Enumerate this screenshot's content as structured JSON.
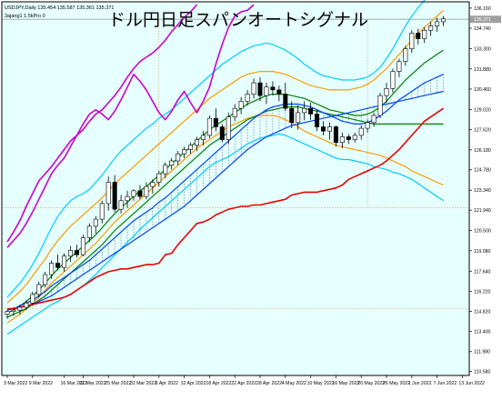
{
  "header": {
    "title": "ドル円日足スパンオートシグナル",
    "symbol_line": "USDJPY,Daily  135.454 135.587 135.361 135.371",
    "indicator_line": "3ajang1 1.5kPro 0"
  },
  "colors": {
    "background": "#e6ffff",
    "frame": "#000000",
    "guide": "#e0a860",
    "bull_candle": "#ffffff",
    "bear_candle": "#000000",
    "price_line_bg": "#a0a0a0"
  },
  "chart_data": {
    "type": "line",
    "ylim": [
      110.3,
      136.6
    ],
    "y_ticks": [
      "136.160",
      "134.740",
      "133.300",
      "131.880",
      "130.460",
      "129.020",
      "127.620",
      "126.180",
      "124.780",
      "123.340",
      "121.940",
      "120.500",
      "119.080",
      "117.640",
      "116.220",
      "114.820",
      "113.400",
      "111.980",
      "110.580"
    ],
    "x_labels": [
      "3 Mar 2022",
      "9 Mar 2022",
      "16 Mar 2022",
      "21 Mar 2022",
      "25 Mar 2022",
      "31 Mar 2022",
      "6 Apr 2022",
      "12 Apr 2022",
      "18 Apr 2022",
      "22 Apr 2022",
      "28 Apr 2022",
      "4 May 2022",
      "10 May 2022",
      "16 May 2022",
      "20 May 2022",
      "26 May 2022",
      "1 Jun 2022",
      "7 Jun 2022",
      "13 Jun 2022"
    ],
    "x_label_index": [
      0,
      4,
      9,
      12,
      16,
      20,
      24,
      28,
      32,
      36,
      40,
      44,
      48,
      52,
      56,
      60,
      64,
      68,
      72
    ],
    "current_price": "135.371",
    "h_levels": [
      135.371,
      122.1,
      115.0
    ],
    "v_lines": [
      24,
      57
    ],
    "candles": [
      [
        114.6,
        114.9,
        114.3,
        114.8
      ],
      [
        114.8,
        115.1,
        114.5,
        114.9
      ],
      [
        114.9,
        115.3,
        114.6,
        115.1
      ],
      [
        115.1,
        115.6,
        114.9,
        115.4
      ],
      [
        115.4,
        116.2,
        115.2,
        116.0
      ],
      [
        116.0,
        116.9,
        115.8,
        116.7
      ],
      [
        116.7,
        117.6,
        116.5,
        117.4
      ],
      [
        117.4,
        118.4,
        117.1,
        118.2
      ],
      [
        118.2,
        118.8,
        117.7,
        117.9
      ],
      [
        117.9,
        118.9,
        117.6,
        118.7
      ],
      [
        118.7,
        119.4,
        118.3,
        119.1
      ],
      [
        119.1,
        119.5,
        118.6,
        118.8
      ],
      [
        118.8,
        120.2,
        118.7,
        120.0
      ],
      [
        120.0,
        121.0,
        119.7,
        120.8
      ],
      [
        120.8,
        121.5,
        120.3,
        121.3
      ],
      [
        121.3,
        122.6,
        121.0,
        122.4
      ],
      [
        122.4,
        124.3,
        121.9,
        123.9
      ],
      [
        123.9,
        124.4,
        121.8,
        122.0
      ],
      [
        122.0,
        123.0,
        121.7,
        122.6
      ],
      [
        122.6,
        123.3,
        122.1,
        122.9
      ],
      [
        122.9,
        123.4,
        122.6,
        123.3
      ],
      [
        123.3,
        123.7,
        122.7,
        122.9
      ],
      [
        122.9,
        123.9,
        122.7,
        123.6
      ],
      [
        123.6,
        124.1,
        123.1,
        123.9
      ],
      [
        123.9,
        124.7,
        123.6,
        124.5
      ],
      [
        124.5,
        125.3,
        124.2,
        125.1
      ],
      [
        125.1,
        125.6,
        124.8,
        125.4
      ],
      [
        125.4,
        126.1,
        125.1,
        125.9
      ],
      [
        125.9,
        126.4,
        125.6,
        126.2
      ],
      [
        126.2,
        126.7,
        125.9,
        126.5
      ],
      [
        126.5,
        127.1,
        126.1,
        126.9
      ],
      [
        126.9,
        127.5,
        126.5,
        127.2
      ],
      [
        127.2,
        128.6,
        127.0,
        128.4
      ],
      [
        128.4,
        129.1,
        127.5,
        127.8
      ],
      [
        127.8,
        128.0,
        126.7,
        126.9
      ],
      [
        126.9,
        128.8,
        126.6,
        128.5
      ],
      [
        128.5,
        129.4,
        128.2,
        129.1
      ],
      [
        129.1,
        129.9,
        128.7,
        129.6
      ],
      [
        129.6,
        130.4,
        129.3,
        130.1
      ],
      [
        130.1,
        131.2,
        129.8,
        130.9
      ],
      [
        130.9,
        131.3,
        129.6,
        130.0
      ],
      [
        130.0,
        130.9,
        129.4,
        130.6
      ],
      [
        130.6,
        131.0,
        130.0,
        130.4
      ],
      [
        130.4,
        130.7,
        129.6,
        130.1
      ],
      [
        130.1,
        130.9,
        128.9,
        129.1
      ],
      [
        129.1,
        129.6,
        127.7,
        128.1
      ],
      [
        128.1,
        129.3,
        127.6,
        128.8
      ],
      [
        128.8,
        129.6,
        128.3,
        129.1
      ],
      [
        129.1,
        129.5,
        128.3,
        128.7
      ],
      [
        128.7,
        129.0,
        127.5,
        127.8
      ],
      [
        127.8,
        128.2,
        127.2,
        127.5
      ],
      [
        127.5,
        128.1,
        126.9,
        127.8
      ],
      [
        127.8,
        127.9,
        126.4,
        126.7
      ],
      [
        126.7,
        127.4,
        126.3,
        127.1
      ],
      [
        127.1,
        127.3,
        126.6,
        126.9
      ],
      [
        126.9,
        127.4,
        126.7,
        127.2
      ],
      [
        127.2,
        127.9,
        126.9,
        127.7
      ],
      [
        127.7,
        128.3,
        127.4,
        128.1
      ],
      [
        128.1,
        128.8,
        127.8,
        128.6
      ],
      [
        128.6,
        130.2,
        128.4,
        130.0
      ],
      [
        130.0,
        130.9,
        129.5,
        130.5
      ],
      [
        130.5,
        131.9,
        130.2,
        131.7
      ],
      [
        131.7,
        132.6,
        131.3,
        132.4
      ],
      [
        132.4,
        133.5,
        132.1,
        133.3
      ],
      [
        133.3,
        134.6,
        133.0,
        134.4
      ],
      [
        134.4,
        134.7,
        133.6,
        134.0
      ],
      [
        134.0,
        134.8,
        133.7,
        134.6
      ],
      [
        134.6,
        135.2,
        134.2,
        134.9
      ],
      [
        134.9,
        135.5,
        134.5,
        135.2
      ],
      [
        135.2,
        135.6,
        134.9,
        135.4
      ]
    ],
    "series": [
      {
        "color": "#00ccff",
        "values": [
          113.2,
          113.5,
          113.8,
          114.1,
          114.4,
          114.7,
          115.0,
          115.3,
          115.5,
          115.8,
          116.0,
          116.3,
          116.6,
          117.0,
          117.4,
          117.9,
          118.3,
          118.8,
          119.2,
          119.7,
          120.1,
          120.6,
          121.0,
          121.4,
          121.8,
          122.2,
          122.6,
          123.0,
          123.4,
          123.8,
          124.2,
          124.6,
          125.0,
          125.3,
          125.5,
          125.7,
          126.0,
          126.3,
          126.6,
          126.8,
          127.0,
          127.1,
          127.2,
          127.3,
          127.2,
          127.0,
          126.8,
          126.6,
          126.4,
          126.2,
          126.0,
          125.8,
          125.6,
          125.5,
          125.5,
          125.4,
          125.3,
          125.2,
          125.0,
          124.9,
          124.8,
          124.6,
          124.5,
          124.3,
          124.1,
          123.8,
          123.5,
          123.2,
          122.9,
          122.6
        ]
      },
      {
        "color": "#00ccff",
        "values": [
          115.8,
          116.3,
          116.8,
          117.4,
          118.1,
          118.9,
          119.8,
          120.7,
          121.5,
          122.1,
          122.6,
          122.9,
          123.1,
          123.4,
          123.9,
          124.4,
          125.0,
          125.6,
          126.1,
          126.5,
          126.9,
          127.3,
          127.7,
          128.0,
          128.4,
          128.7,
          129.0,
          129.4,
          129.8,
          130.2,
          130.6,
          131.0,
          131.4,
          131.8,
          132.2,
          132.5,
          132.8,
          133.1,
          133.3,
          133.5,
          133.6,
          133.7,
          133.6,
          133.4,
          133.2,
          132.9,
          132.6,
          132.2,
          131.9,
          131.6,
          131.4,
          131.3,
          131.2,
          131.1,
          131.1,
          131.1,
          131.2,
          131.3,
          131.6,
          132.0,
          132.6,
          133.3,
          134.1,
          134.9,
          135.6,
          136.2,
          136.7,
          137.1,
          137.4,
          137.7
        ]
      },
      {
        "color": "#ff9900",
        "values": [
          114.0,
          114.3,
          114.6,
          115.0,
          115.4,
          115.8,
          116.3,
          116.8,
          117.2,
          117.6,
          118.0,
          118.4,
          118.8,
          119.2,
          119.6,
          120.1,
          120.6,
          121.1,
          121.5,
          121.9,
          122.3,
          122.7,
          123.1,
          123.5,
          123.9,
          124.3,
          124.7,
          125.1,
          125.5,
          125.9,
          126.3,
          126.6,
          126.9,
          127.2,
          127.5,
          127.8,
          128.0,
          128.2,
          128.4,
          128.5,
          128.6,
          128.6,
          128.6,
          128.5,
          128.3,
          128.1,
          127.8,
          127.5,
          127.3,
          127.1,
          126.9,
          126.7,
          126.5,
          126.4,
          126.3,
          126.2,
          126.1,
          126.0,
          125.9,
          125.8,
          125.6,
          125.4,
          125.2,
          125.0,
          124.7,
          124.5,
          124.3,
          124.1,
          123.9,
          123.7
        ]
      },
      {
        "color": "#ff9900",
        "values": [
          115.4,
          115.8,
          116.2,
          116.7,
          117.3,
          117.9,
          118.5,
          119.2,
          119.8,
          120.3,
          120.8,
          121.2,
          121.6,
          122.0,
          122.4,
          122.8,
          123.3,
          123.8,
          124.2,
          124.6,
          125.0,
          125.4,
          125.8,
          126.2,
          126.6,
          127.0,
          127.4,
          127.8,
          128.2,
          128.6,
          129.0,
          129.4,
          129.8,
          130.1,
          130.4,
          130.7,
          131.0,
          131.3,
          131.5,
          131.6,
          131.7,
          131.7,
          131.7,
          131.6,
          131.5,
          131.3,
          131.1,
          130.9,
          130.7,
          130.6,
          130.5,
          130.4,
          130.4,
          130.4,
          130.4,
          130.5,
          130.6,
          130.8,
          131.1,
          131.5,
          131.9,
          132.4,
          132.9,
          133.4,
          133.9,
          134.4,
          134.8,
          135.2,
          135.6,
          136.0
        ]
      },
      {
        "color": "#008000",
        "values": [
          114.4,
          114.6,
          114.8,
          115.0,
          115.3,
          115.6,
          115.9,
          116.3,
          116.7,
          117.1,
          117.5,
          117.9,
          118.3,
          118.7,
          119.1,
          119.5,
          120.0,
          120.5,
          120.9,
          121.3,
          121.7,
          122.1,
          122.5,
          122.9,
          123.3,
          123.7,
          124.1,
          124.5,
          124.9,
          125.3,
          125.7,
          126.1,
          126.5,
          126.8,
          127.1,
          127.4,
          127.7,
          128.0,
          128.3,
          128.5,
          128.7,
          128.9,
          129.0,
          129.1,
          129.2,
          129.2,
          129.2,
          129.1,
          129.0,
          128.9,
          128.8,
          128.7,
          128.6,
          128.5,
          128.4,
          128.3,
          128.2,
          128.1,
          128.0,
          128.0,
          128.0,
          128.0,
          128.0,
          128.0,
          128.0,
          128.0,
          128.0,
          128.0,
          128.0,
          128.0
        ]
      },
      {
        "color": "#008000",
        "values": [
          114.7,
          114.9,
          115.2,
          115.5,
          115.9,
          116.3,
          116.8,
          117.3,
          117.8,
          118.2,
          118.6,
          119.0,
          119.4,
          119.8,
          120.2,
          120.7,
          121.2,
          121.7,
          122.1,
          122.5,
          122.9,
          123.3,
          123.6,
          124.0,
          124.4,
          124.8,
          125.2,
          125.6,
          126.0,
          126.4,
          126.8,
          127.2,
          127.6,
          127.9,
          128.2,
          128.5,
          128.8,
          129.1,
          129.4,
          129.6,
          129.8,
          130.0,
          130.1,
          130.1,
          130.1,
          130.0,
          129.9,
          129.8,
          129.6,
          129.4,
          129.2,
          129.0,
          128.9,
          128.8,
          128.7,
          128.6,
          128.6,
          128.7,
          128.9,
          129.2,
          129.6,
          130.1,
          130.6,
          131.1,
          131.5,
          131.9,
          132.3,
          132.6,
          132.9,
          133.2
        ]
      },
      {
        "color": "#0044ff",
        "values": [
          114.9,
          115.0,
          115.2,
          115.4,
          115.6,
          115.9,
          116.2,
          116.6,
          116.9,
          117.2,
          117.5,
          117.8,
          118.1,
          118.4,
          118.8,
          119.2,
          119.6,
          120.0,
          120.4,
          120.8,
          121.2,
          121.5,
          121.8,
          122.1,
          122.5,
          122.8,
          123.2,
          123.6,
          124.0,
          124.4,
          124.8,
          125.2,
          125.6,
          126.0,
          126.4,
          126.8,
          127.2,
          127.6,
          128.0,
          128.4,
          128.7,
          129.0,
          129.2,
          129.3,
          129.4,
          129.4,
          129.4,
          129.3,
          129.2,
          129.0,
          128.8,
          128.6,
          128.4,
          128.2,
          128.1,
          128.0,
          128.0,
          128.1,
          128.3,
          128.6,
          128.9,
          129.3,
          129.7,
          130.0,
          130.3,
          130.6,
          130.9,
          131.1,
          131.3,
          131.5
        ]
      },
      {
        "color": "#0044ff",
        "values": [
          114.9,
          115.0,
          115.1,
          115.2,
          115.3,
          115.5,
          115.7,
          115.9,
          116.2,
          116.5,
          116.8,
          117.1,
          117.4,
          117.7,
          118.0,
          118.3,
          118.6,
          118.9,
          119.2,
          119.5,
          119.8,
          120.1,
          120.4,
          120.7,
          121.0,
          121.3,
          121.6,
          121.9,
          122.2,
          122.6,
          123.0,
          123.4,
          123.8,
          124.2,
          124.6,
          125.0,
          125.4,
          125.8,
          126.2,
          126.5,
          126.8,
          127.1,
          127.3,
          127.5,
          127.7,
          127.9,
          128.0,
          128.1,
          128.2,
          128.3,
          128.4,
          128.5,
          128.6,
          128.7,
          128.8,
          128.9,
          129.0,
          129.1,
          129.2,
          129.3,
          129.4,
          129.5,
          129.6,
          129.7,
          129.8,
          129.9,
          130.0,
          130.1,
          130.2,
          130.3
        ]
      },
      {
        "color": "#ee0000",
        "values": [
          115.0,
          115.0,
          115.1,
          115.2,
          115.3,
          115.4,
          115.5,
          115.6,
          115.7,
          115.8,
          116.0,
          116.3,
          116.6,
          116.9,
          117.2,
          117.4,
          117.6,
          117.7,
          117.8,
          117.8,
          117.9,
          118.0,
          118.1,
          118.1,
          118.2,
          118.8,
          118.9,
          119.5,
          120.0,
          120.5,
          121.0,
          121.1,
          121.3,
          121.6,
          121.8,
          122.0,
          122.1,
          122.2,
          122.2,
          122.3,
          122.3,
          122.4,
          122.5,
          122.6,
          122.7,
          123.0,
          123.1,
          123.2,
          123.2,
          123.2,
          123.3,
          123.4,
          123.5,
          123.7,
          124.1,
          124.3,
          124.5,
          124.7,
          124.9,
          125.1,
          125.4,
          125.8,
          126.2,
          126.7,
          127.2,
          127.7,
          128.2,
          128.5,
          128.8,
          129.1
        ]
      },
      {
        "color": "#cc00cc",
        "values": [
          119.3,
          119.8,
          120.3,
          121.0,
          121.8,
          122.7,
          123.6,
          124.5,
          125.1,
          125.6,
          126.4,
          127.2,
          128.0,
          128.7,
          129.0,
          128.7,
          128.3,
          128.9,
          129.7,
          130.6,
          131.5,
          131.0,
          130.4,
          129.6,
          128.8,
          128.3,
          128.9,
          129.7,
          130.3,
          129.5,
          128.8,
          129.6,
          130.6,
          132.2,
          133.6,
          134.8,
          135.6,
          135.9,
          136.0,
          136.4
        ]
      },
      {
        "color": "#cc00cc",
        "values": [
          119.7,
          120.4,
          121.2,
          122.2,
          123.1,
          124.0,
          124.5,
          125.0,
          125.6,
          126.2,
          126.8,
          127.2,
          127.6,
          128.2,
          128.7,
          129.0,
          129.5,
          130.0,
          130.6,
          131.3,
          131.9,
          132.4,
          132.7,
          133.0,
          133.4,
          133.9,
          134.5,
          135.0,
          135.5,
          135.9,
          136.4
        ]
      }
    ]
  }
}
